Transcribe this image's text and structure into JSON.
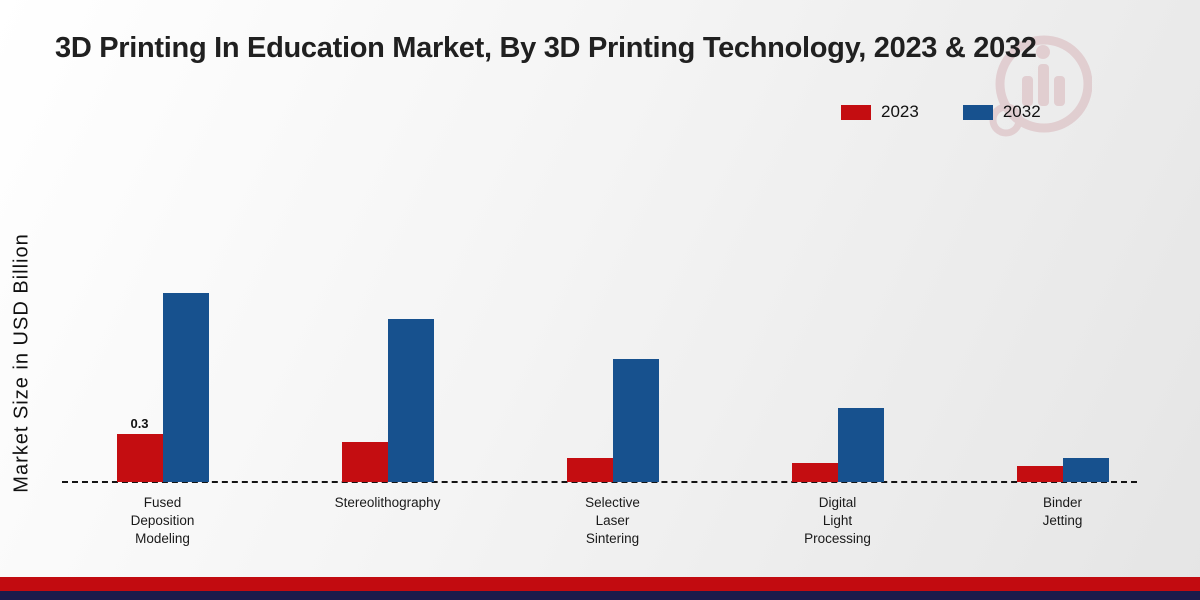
{
  "chart_data": {
    "type": "bar",
    "title": "3D Printing In Education Market, By 3D Printing Technology, 2023 & 2032",
    "xlabel": "",
    "ylabel": "Market Size in USD Billion",
    "units": "USD Billion",
    "categories": [
      "Fused\nDeposition\nModeling",
      "Stereolithography",
      "Selective\nLaser\nSintering",
      "Digital\nLight\nProcessing",
      "Binder\nJetting"
    ],
    "series": [
      {
        "name": "2023",
        "color": "#c40d11",
        "values": [
          0.3,
          0.25,
          0.15,
          0.12,
          0.1
        ]
      },
      {
        "name": "2032",
        "color": "#17518e",
        "values": [
          1.18,
          1.02,
          0.77,
          0.46,
          0.15
        ]
      }
    ],
    "annotations": [
      {
        "category_index": 0,
        "series_index": 0,
        "text": "0.3"
      }
    ],
    "ylim": [
      0,
      1.4
    ],
    "grid": false,
    "legend_position": "top-right",
    "baseline_style": "dashed"
  },
  "footer": {
    "red_strip_color": "#c20b10",
    "navy_strip_color": "#1b1b4b"
  },
  "watermark": {
    "color": "#d4aab0"
  }
}
